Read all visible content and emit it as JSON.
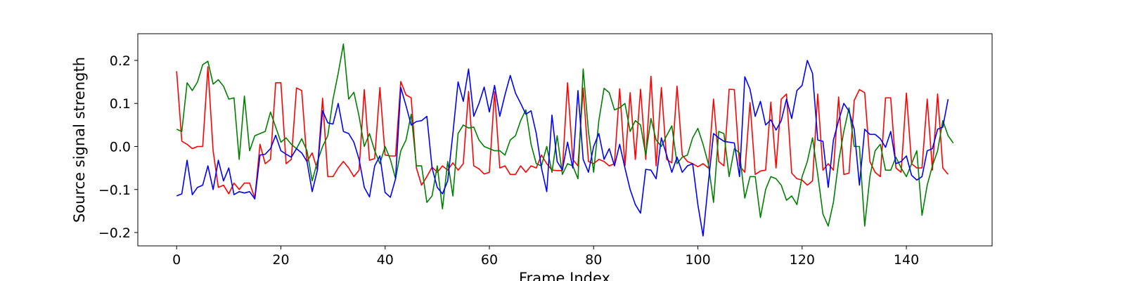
{
  "chart_data": {
    "type": "line",
    "title": "",
    "xlabel": "Frame Index",
    "ylabel": "Source signal strength",
    "xlim": [
      -7.45,
      156.45
    ],
    "ylim": [
      -0.231,
      0.262
    ],
    "xticks": [
      0,
      20,
      40,
      60,
      80,
      100,
      120,
      140
    ],
    "xtick_labels": [
      "0",
      "20",
      "40",
      "60",
      "80",
      "100",
      "120",
      "140"
    ],
    "yticks": [
      -0.2,
      -0.1,
      0.0,
      0.1,
      0.2
    ],
    "ytick_labels": [
      "−0.2",
      "−0.1",
      "0.0",
      "0.1",
      "0.2"
    ],
    "grid": false,
    "legend": "none",
    "series": [
      {
        "color": "#ff0000",
        "values": [
          0.175,
          0.012,
          0.005,
          -0.005,
          0.0,
          0.0,
          0.185,
          -0.01,
          -0.095,
          -0.09,
          -0.11,
          -0.085,
          -0.1,
          -0.085,
          -0.085,
          -0.12,
          0.005,
          -0.04,
          -0.03,
          0.148,
          0.148,
          -0.04,
          -0.03,
          0.136,
          0.13,
          -0.035,
          -0.015,
          -0.055,
          0.112,
          -0.07,
          -0.07,
          -0.05,
          -0.035,
          -0.05,
          -0.07,
          -0.055,
          0.132,
          -0.032,
          -0.028,
          0.137,
          -0.02,
          -0.022,
          -0.022,
          0.151,
          0.12,
          0.113,
          -0.05,
          -0.09,
          -0.07,
          -0.048,
          -0.06,
          -0.045,
          -0.055,
          -0.038,
          -0.055,
          -0.04,
          0.128,
          -0.045,
          -0.052,
          -0.064,
          -0.06,
          0.127,
          -0.05,
          -0.045,
          -0.065,
          -0.065,
          -0.045,
          -0.06,
          -0.045,
          -0.05,
          -0.02,
          -0.04,
          -0.055,
          -0.056,
          -0.056,
          0.148,
          -0.03,
          -0.045,
          0.136,
          -0.035,
          -0.04,
          -0.03,
          -0.035,
          -0.045,
          -0.04,
          0.134,
          -0.045,
          0.125,
          -0.03,
          0.133,
          -0.03,
          0.163,
          -0.045,
          0.137,
          -0.03,
          -0.038,
          0.14,
          -0.02,
          -0.035,
          -0.04,
          -0.047,
          -0.04,
          -0.05,
          0.11,
          -0.035,
          -0.045,
          0.133,
          0.132,
          -0.045,
          -0.06,
          0.102,
          -0.065,
          -0.057,
          -0.055,
          0.103,
          -0.05,
          0.11,
          0.122,
          -0.062,
          -0.075,
          -0.078,
          -0.09,
          -0.08,
          0.122,
          -0.055,
          -0.04,
          -0.055,
          0.115,
          -0.065,
          -0.062,
          0.107,
          0.132,
          0.125,
          -0.035,
          -0.06,
          -0.07,
          0.113,
          0.113,
          -0.05,
          -0.06,
          0.124,
          -0.04,
          -0.05,
          -0.05,
          0.11,
          -0.055,
          0.122,
          -0.05,
          -0.065
        ]
      },
      {
        "color": "#008000",
        "values": [
          0.04,
          0.035,
          0.148,
          0.13,
          0.15,
          0.19,
          0.198,
          0.145,
          0.155,
          0.14,
          0.11,
          0.113,
          -0.03,
          0.117,
          -0.01,
          0.025,
          0.03,
          0.035,
          0.08,
          0.045,
          0.01,
          0.02,
          0.005,
          -0.005,
          0.018,
          -0.01,
          -0.08,
          -0.035,
          0.0,
          0.025,
          0.11,
          0.17,
          0.238,
          0.11,
          0.126,
          0.07,
          0.0,
          0.03,
          -0.01,
          -0.04,
          0.0,
          -0.03,
          -0.075,
          -0.01,
          0.015,
          0.075,
          -0.045,
          -0.045,
          -0.13,
          -0.115,
          -0.045,
          -0.145,
          -0.035,
          -0.115,
          0.03,
          0.05,
          0.043,
          0.045,
          0.015,
          0.0,
          -0.005,
          -0.01,
          -0.01,
          -0.02,
          0.015,
          0.025,
          0.06,
          0.085,
          0.005,
          -0.04,
          -0.045,
          0.0,
          -0.06,
          0.025,
          -0.065,
          -0.04,
          -0.045,
          -0.075,
          0.18,
          0.035,
          -0.06,
          0.06,
          0.135,
          0.125,
          0.085,
          0.09,
          0.1,
          0.035,
          0.06,
          0.05,
          -0.02,
          0.065,
          0.015,
          0.0,
          0.025,
          0.048,
          -0.04,
          -0.025,
          -0.02,
          0.02,
          0.042,
          0.005,
          -0.04,
          -0.13,
          0.035,
          0.03,
          -0.07,
          -0.005,
          -0.015,
          -0.12,
          -0.07,
          -0.07,
          -0.165,
          -0.1,
          -0.07,
          -0.075,
          -0.09,
          -0.125,
          -0.115,
          -0.135,
          -0.07,
          -0.035,
          0.02,
          -0.065,
          -0.157,
          -0.185,
          -0.13,
          -0.035,
          0.035,
          0.09,
          0.0,
          0.0,
          -0.185,
          -0.07,
          -0.01,
          0.005,
          -0.055,
          -0.055,
          -0.025,
          -0.05,
          -0.07,
          -0.04,
          -0.01,
          -0.16,
          -0.09,
          -0.045,
          -0.01,
          0.06,
          0.025,
          0.008
        ]
      },
      {
        "color": "#0000ff",
        "values": [
          -0.115,
          -0.11,
          -0.032,
          -0.112,
          -0.095,
          -0.09,
          -0.045,
          -0.1,
          -0.032,
          -0.08,
          -0.05,
          -0.112,
          -0.105,
          -0.108,
          -0.105,
          -0.122,
          -0.02,
          -0.018,
          -0.005,
          0.026,
          -0.01,
          -0.018,
          -0.025,
          -0.005,
          -0.015,
          -0.035,
          -0.105,
          -0.055,
          0.083,
          0.055,
          0.052,
          0.1,
          0.035,
          0.03,
          0.01,
          -0.03,
          -0.095,
          -0.117,
          -0.045,
          -0.022,
          -0.107,
          -0.118,
          -0.075,
          0.137,
          0.095,
          0.05,
          0.058,
          0.06,
          0.07,
          -0.05,
          -0.095,
          -0.11,
          -0.08,
          0.03,
          0.15,
          0.105,
          0.18,
          0.07,
          0.1,
          0.138,
          0.08,
          0.142,
          0.07,
          0.12,
          0.165,
          0.124,
          0.1,
          0.075,
          0.083,
          0.03,
          -0.05,
          -0.105,
          0.073,
          -0.035,
          -0.055,
          0.01,
          -0.05,
          0.13,
          -0.03,
          -0.06,
          0.0,
          0.03,
          -0.03,
          -0.005,
          -0.045,
          0.005,
          -0.05,
          -0.1,
          -0.135,
          -0.155,
          -0.053,
          -0.055,
          -0.075,
          0.02,
          -0.02,
          -0.06,
          -0.025,
          -0.06,
          -0.045,
          -0.04,
          -0.135,
          -0.208,
          -0.085,
          0.03,
          0.02,
          0.012,
          0.01,
          0.008,
          -0.07,
          0.162,
          0.133,
          0.07,
          0.105,
          0.05,
          0.062,
          0.038,
          0.06,
          0.11,
          0.065,
          0.13,
          0.142,
          0.2,
          0.17,
          0.015,
          0.012,
          -0.095,
          0.015,
          0.06,
          0.1,
          0.082,
          0.04,
          -0.09,
          0.04,
          0.028,
          0.028,
          0.018,
          -0.002,
          0.035,
          -0.04,
          -0.035,
          -0.022,
          -0.067,
          -0.078,
          -0.07,
          -0.01,
          -0.005,
          0.04,
          0.045,
          0.11
        ]
      }
    ]
  }
}
